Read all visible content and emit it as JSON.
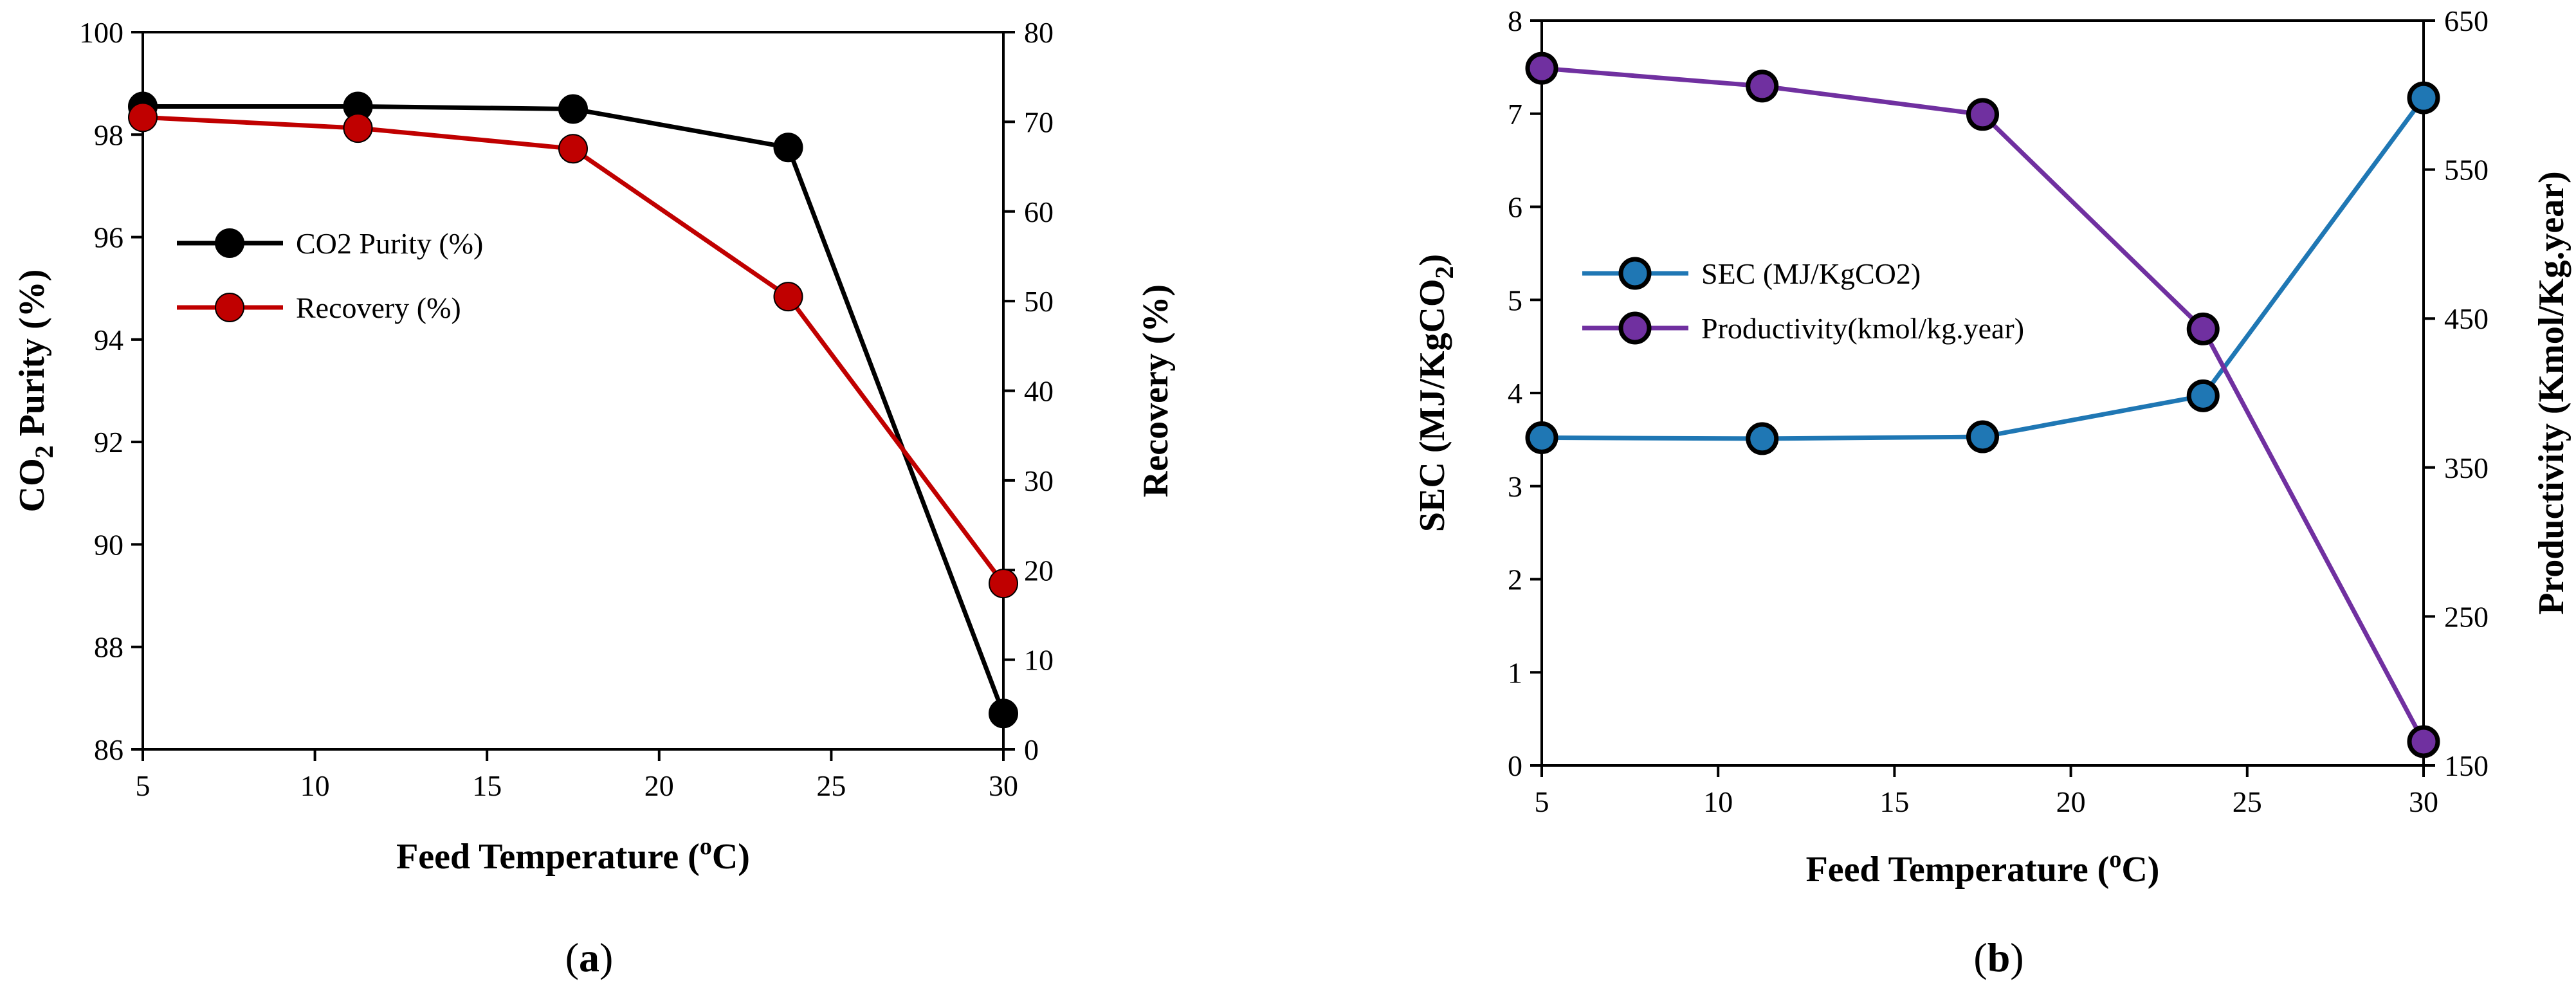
{
  "chart_data": [
    {
      "panel": "(a)",
      "panel_label_parts": [
        "(",
        "a",
        ")"
      ],
      "type": "line",
      "title": "",
      "xlabel": "Feed Temperature (ºC)",
      "xlabel_parts": [
        "Feed Temperature (",
        "o",
        "C)"
      ],
      "ylabel": "CO2 Purity (%)",
      "ylabel_parts": [
        "CO",
        "2",
        " Purity (%)"
      ],
      "y2label": "Recovery (%)",
      "x_ticks": [
        "5",
        "10",
        "15",
        "20",
        "25",
        "30"
      ],
      "xlim": [
        5,
        30
      ],
      "ylim": [
        86,
        100
      ],
      "y_ticks": [
        "86",
        "88",
        "90",
        "92",
        "94",
        "96",
        "98",
        "100"
      ],
      "y2lim": [
        0,
        80
      ],
      "y2_ticks": [
        "0",
        "10",
        "20",
        "30",
        "40",
        "50",
        "60",
        "70",
        "80"
      ],
      "grid": false,
      "legend_position": "center-left",
      "x": [
        5,
        11.25,
        17.5,
        23.75,
        30
      ],
      "series": [
        {
          "name": "CO2 Purity (%)",
          "axis": "left",
          "color": "#000000",
          "values": [
            98.55,
            98.55,
            98.5,
            97.75,
            86.7
          ]
        },
        {
          "name": "Recovery (%)",
          "axis": "right",
          "color": "#c00000",
          "values": [
            70.5,
            69.3,
            67,
            50.5,
            18.5
          ]
        }
      ]
    },
    {
      "panel": "(b)",
      "panel_label_parts": [
        "(",
        "b",
        ")"
      ],
      "type": "line",
      "title": "",
      "xlabel": "Feed Temperature (ºC)",
      "xlabel_parts": [
        "Feed Temperature (",
        "o",
        "C)"
      ],
      "ylabel": "SEC (MJ/KgCO2)",
      "ylabel_parts": [
        "SEC (MJ/KgCO",
        "2",
        ")"
      ],
      "y2label": "Productivity (Kmol/Kg.year)",
      "x_ticks": [
        "5",
        "10",
        "15",
        "20",
        "25",
        "30"
      ],
      "xlim": [
        5,
        30
      ],
      "ylim": [
        0,
        8
      ],
      "y_ticks": [
        "0",
        "1",
        "2",
        "3",
        "4",
        "5",
        "6",
        "7",
        "8"
      ],
      "y2lim": [
        150,
        650
      ],
      "y2_ticks": [
        "150",
        "250",
        "350",
        "450",
        "550",
        "650"
      ],
      "grid": false,
      "legend_position": "center-left",
      "x": [
        5,
        11.25,
        17.5,
        23.75,
        30
      ],
      "series": [
        {
          "name": "SEC (MJ/KgCO2)",
          "axis": "left",
          "color": "#1f77b4",
          "values": [
            3.52,
            3.51,
            3.53,
            3.97,
            7.17
          ]
        },
        {
          "name": "Productivity(kmol/kg.year)",
          "axis": "right",
          "color": "#7030a0",
          "values": [
            618,
            606,
            587,
            443,
            166
          ]
        }
      ]
    }
  ]
}
